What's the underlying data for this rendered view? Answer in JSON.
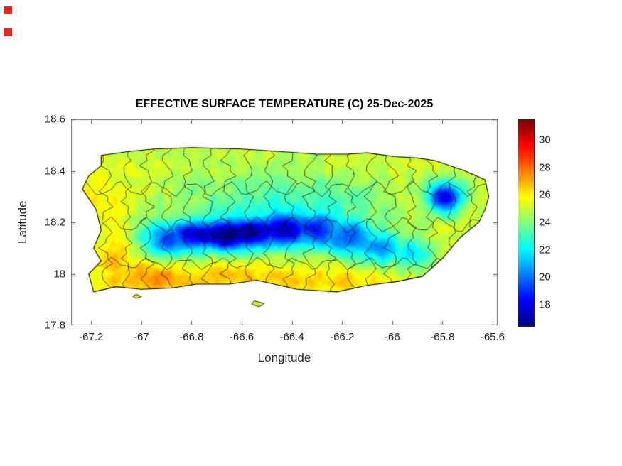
{
  "decor": {
    "red_marker_color": "#e8291c"
  },
  "chart_data": {
    "type": "heatmap",
    "title": "EFFECTIVE SURFACE TEMPERATURE (C) 25-Dec-2025",
    "variable": "Effective surface temperature",
    "units": "C",
    "date": "25-Dec-2025",
    "region": "Puerto Rico",
    "xlabel": "Longitude",
    "ylabel": "Latitude",
    "xlim": [
      -67.28,
      -65.58
    ],
    "ylim": [
      17.8,
      18.6
    ],
    "grid_on": false,
    "colormap": "jet",
    "clim": [
      16.5,
      31.5
    ],
    "legend_position": "colorbar-right",
    "x_ticks": [
      {
        "value": -67.2,
        "label": "-67.2"
      },
      {
        "value": -67.0,
        "label": "-67"
      },
      {
        "value": -66.8,
        "label": "-66.8"
      },
      {
        "value": -66.6,
        "label": "-66.6"
      },
      {
        "value": -66.4,
        "label": "-66.4"
      },
      {
        "value": -66.2,
        "label": "-66.2"
      },
      {
        "value": -66.0,
        "label": "-66"
      },
      {
        "value": -65.8,
        "label": "-65.8"
      },
      {
        "value": -65.6,
        "label": "-65.6"
      }
    ],
    "y_ticks": [
      {
        "value": 18.6,
        "label": "18.6"
      },
      {
        "value": 18.4,
        "label": "18.4"
      },
      {
        "value": 18.2,
        "label": "18.2"
      },
      {
        "value": 18.0,
        "label": "18"
      },
      {
        "value": 17.8,
        "label": "17.8"
      }
    ],
    "colorbar_ticks": [
      {
        "value": 30,
        "label": "30"
      },
      {
        "value": 28,
        "label": "28"
      },
      {
        "value": 26,
        "label": "26"
      },
      {
        "value": 24,
        "label": "24"
      },
      {
        "value": 22,
        "label": "22"
      },
      {
        "value": 20,
        "label": "20"
      },
      {
        "value": 18,
        "label": "18"
      }
    ],
    "sample_grid": {
      "comment": "Approximate effective surface temperature (C) read from the map; null = ocean",
      "lons": [
        -67.2,
        -67.1,
        -67.0,
        -66.9,
        -66.8,
        -66.7,
        -66.6,
        -66.5,
        -66.4,
        -66.3,
        -66.2,
        -66.1,
        -66.0,
        -65.9,
        -65.8,
        -65.7,
        -65.6
      ],
      "lats": [
        18.45,
        18.35,
        18.25,
        18.15,
        18.05,
        17.95
      ],
      "values": [
        [
          null,
          25,
          25,
          25,
          25,
          24,
          24,
          24,
          24,
          25,
          25,
          25,
          25,
          24,
          24,
          null,
          null
        ],
        [
          25,
          24,
          24,
          24,
          23,
          23,
          23,
          22,
          23,
          23,
          24,
          24,
          24,
          24,
          22,
          24,
          null
        ],
        [
          25,
          25,
          24,
          23,
          22,
          22,
          21,
          21,
          21,
          22,
          22,
          23,
          23,
          24,
          19,
          24,
          24
        ],
        [
          null,
          25,
          24,
          22,
          19,
          18,
          18,
          19,
          20,
          21,
          21,
          22,
          23,
          23,
          24,
          25,
          null
        ],
        [
          null,
          25,
          25,
          25,
          24,
          24,
          23,
          24,
          23,
          23,
          22,
          23,
          22,
          24,
          25,
          null,
          null
        ],
        [
          null,
          26,
          27,
          26,
          26,
          26,
          26,
          26,
          26,
          25,
          25,
          25,
          25,
          25,
          null,
          null,
          null
        ]
      ]
    },
    "field_model": {
      "base_temp": 25.2,
      "noise_amp": 0.85,
      "anomalies": [
        {
          "lon": -66.9,
          "lat": 18.13,
          "dT": -5.0,
          "rlon": 0.085,
          "rlat": 0.05
        },
        {
          "lon": -66.78,
          "lat": 18.15,
          "dT": -6.5,
          "rlon": 0.085,
          "rlat": 0.045
        },
        {
          "lon": -66.66,
          "lat": 18.15,
          "dT": -7.5,
          "rlon": 0.08,
          "rlat": 0.045
        },
        {
          "lon": -66.55,
          "lat": 18.16,
          "dT": -7.0,
          "rlon": 0.08,
          "rlat": 0.045
        },
        {
          "lon": -66.43,
          "lat": 18.17,
          "dT": -6.5,
          "rlon": 0.08,
          "rlat": 0.05
        },
        {
          "lon": -66.3,
          "lat": 18.17,
          "dT": -5.5,
          "rlon": 0.08,
          "rlat": 0.05
        },
        {
          "lon": -66.17,
          "lat": 18.14,
          "dT": -5.0,
          "rlon": 0.08,
          "rlat": 0.05
        },
        {
          "lon": -66.05,
          "lat": 18.1,
          "dT": -4.0,
          "rlon": 0.07,
          "rlat": 0.05
        },
        {
          "lon": -65.92,
          "lat": 18.08,
          "dT": -3.0,
          "rlon": 0.06,
          "rlat": 0.045
        },
        {
          "lon": -65.79,
          "lat": 18.3,
          "dT": -7.0,
          "rlon": 0.05,
          "rlat": 0.045
        },
        {
          "lon": -66.45,
          "lat": 18.25,
          "dT": -2.2,
          "rlon": 0.3,
          "rlat": 0.1
        },
        {
          "lon": -66.2,
          "lat": 18.28,
          "dT": -1.5,
          "rlon": 0.15,
          "rlat": 0.07
        },
        {
          "lon": -66.95,
          "lat": 17.98,
          "dT": 2.0,
          "rlon": 0.12,
          "rlat": 0.05
        },
        {
          "lon": -66.55,
          "lat": 17.98,
          "dT": 1.6,
          "rlon": 0.18,
          "rlat": 0.045
        },
        {
          "lon": -67.08,
          "lat": 18.08,
          "dT": 1.2,
          "rlon": 0.07,
          "rlat": 0.07
        },
        {
          "lon": -66.15,
          "lat": 17.97,
          "dT": 1.2,
          "rlon": 0.12,
          "rlat": 0.04
        },
        {
          "lon": -67.15,
          "lat": 18.3,
          "dT": 0.8,
          "rlon": 0.08,
          "rlat": 0.08
        }
      ]
    },
    "coastline": [
      [
        -67.16,
        18.46
      ],
      [
        -67.05,
        18.475
      ],
      [
        -66.95,
        18.485
      ],
      [
        -66.8,
        18.49
      ],
      [
        -66.6,
        18.485
      ],
      [
        -66.45,
        18.475
      ],
      [
        -66.3,
        18.465
      ],
      [
        -66.18,
        18.465
      ],
      [
        -66.1,
        18.47
      ],
      [
        -65.99,
        18.455
      ],
      [
        -65.9,
        18.45
      ],
      [
        -65.83,
        18.44
      ],
      [
        -65.71,
        18.4
      ],
      [
        -65.63,
        18.365
      ],
      [
        -65.615,
        18.3
      ],
      [
        -65.63,
        18.25
      ],
      [
        -65.655,
        18.2
      ],
      [
        -65.73,
        18.14
      ],
      [
        -65.8,
        18.06
      ],
      [
        -65.88,
        17.99
      ],
      [
        -65.98,
        17.97
      ],
      [
        -66.1,
        17.955
      ],
      [
        -66.22,
        17.93
      ],
      [
        -66.38,
        17.94
      ],
      [
        -66.54,
        17.975
      ],
      [
        -66.65,
        17.96
      ],
      [
        -66.78,
        17.96
      ],
      [
        -66.88,
        17.945
      ],
      [
        -67.0,
        17.94
      ],
      [
        -67.1,
        17.95
      ],
      [
        -67.19,
        17.93
      ],
      [
        -67.21,
        18.0
      ],
      [
        -67.16,
        18.05
      ],
      [
        -67.19,
        18.1
      ],
      [
        -67.16,
        18.17
      ],
      [
        -67.18,
        18.25
      ],
      [
        -67.235,
        18.33
      ],
      [
        -67.21,
        18.38
      ],
      [
        -67.16,
        18.42
      ]
    ],
    "islets": [
      [
        [
          -66.55,
          17.895
        ],
        [
          -66.51,
          17.885
        ],
        [
          -66.53,
          17.872
        ],
        [
          -66.56,
          17.882
        ]
      ],
      [
        [
          -67.02,
          17.92
        ],
        [
          -67.0,
          17.912
        ],
        [
          -67.02,
          17.905
        ],
        [
          -67.035,
          17.913
        ]
      ]
    ],
    "boundaries": {
      "style": "municipality-borders-approx",
      "seed": 11,
      "vertical_lines": 19,
      "horizontal_lats": [
        18.33,
        18.19,
        18.04
      ]
    }
  }
}
